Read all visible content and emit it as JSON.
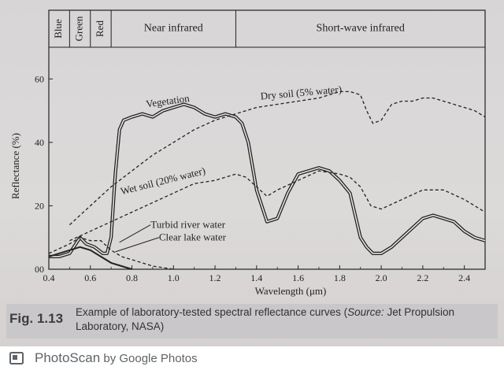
{
  "chart_data": {
    "type": "line",
    "xlabel": "Wavelength (μm)",
    "ylabel": "Reflectance (%)",
    "xlim": [
      0.4,
      2.5
    ],
    "ylim": [
      0,
      70
    ],
    "x_ticks": [
      "0.4",
      "0.6",
      "0.8",
      "1.0",
      "1.2",
      "1.4",
      "1.6",
      "1.8",
      "2.0",
      "2.2",
      "2.4"
    ],
    "y_ticks": [
      "00",
      "20",
      "40",
      "60"
    ],
    "bands": [
      {
        "label": "Blue",
        "from": 0.4,
        "to": 0.5
      },
      {
        "label": "Green",
        "from": 0.5,
        "to": 0.6
      },
      {
        "label": "Red",
        "from": 0.6,
        "to": 0.7
      },
      {
        "label": "Near infrared",
        "from": 0.7,
        "to": 1.3
      },
      {
        "label": "Short-wave infrared",
        "from": 1.3,
        "to": 2.5
      }
    ],
    "series": [
      {
        "name": "Vegetation",
        "style": "double",
        "x": [
          0.4,
          0.45,
          0.5,
          0.53,
          0.55,
          0.58,
          0.62,
          0.66,
          0.68,
          0.7,
          0.72,
          0.74,
          0.76,
          0.8,
          0.85,
          0.9,
          0.95,
          1.0,
          1.05,
          1.1,
          1.15,
          1.2,
          1.25,
          1.3,
          1.33,
          1.36,
          1.4,
          1.45,
          1.5,
          1.55,
          1.6,
          1.65,
          1.7,
          1.75,
          1.8,
          1.85,
          1.9,
          1.93,
          1.96,
          2.0,
          2.05,
          2.1,
          2.15,
          2.2,
          2.25,
          2.3,
          2.35,
          2.4,
          2.45,
          2.5
        ],
        "y": [
          4,
          4,
          5,
          8,
          10,
          8,
          7,
          5,
          5,
          10,
          30,
          44,
          47,
          48,
          49,
          48,
          50,
          51,
          52,
          51,
          49,
          48,
          49,
          48,
          46,
          40,
          25,
          15,
          16,
          24,
          30,
          31,
          32,
          31,
          28,
          24,
          10,
          7,
          5,
          5,
          7,
          10,
          13,
          16,
          17,
          16,
          15,
          12,
          10,
          9
        ]
      },
      {
        "name": "Dry soil (5% water)",
        "style": "dashed",
        "x": [
          0.5,
          0.6,
          0.7,
          0.8,
          0.9,
          1.0,
          1.1,
          1.2,
          1.3,
          1.4,
          1.5,
          1.6,
          1.7,
          1.8,
          1.85,
          1.9,
          1.93,
          1.96,
          2.0,
          2.05,
          2.1,
          2.15,
          2.2,
          2.25,
          2.3,
          2.35,
          2.4,
          2.45,
          2.5
        ],
        "y": [
          14,
          20,
          26,
          31,
          36,
          40,
          44,
          47,
          49,
          51,
          52,
          53,
          54,
          56,
          56,
          55,
          50,
          46,
          47,
          52,
          53,
          53,
          54,
          54,
          53,
          52,
          51,
          50,
          48
        ]
      },
      {
        "name": "Wet soil (20% water)",
        "style": "dashed",
        "x": [
          0.5,
          0.6,
          0.7,
          0.8,
          0.9,
          1.0,
          1.1,
          1.2,
          1.3,
          1.35,
          1.4,
          1.45,
          1.5,
          1.6,
          1.7,
          1.8,
          1.85,
          1.9,
          1.95,
          2.0,
          2.1,
          2.2,
          2.3,
          2.4,
          2.5
        ],
        "y": [
          9,
          12,
          15,
          18,
          21,
          24,
          27,
          28,
          30,
          29,
          26,
          23,
          25,
          28,
          31,
          30,
          29,
          26,
          20,
          19,
          22,
          25,
          25,
          22,
          18
        ]
      },
      {
        "name": "Turbid river water",
        "style": "dashed",
        "x": [
          0.4,
          0.5,
          0.55,
          0.6,
          0.65,
          0.7,
          0.75,
          0.8,
          0.9,
          1.0
        ],
        "y": [
          5,
          8,
          10,
          9,
          9,
          6,
          4,
          3,
          1,
          0
        ]
      },
      {
        "name": "Clear lake water",
        "style": "solid",
        "x": [
          0.4,
          0.45,
          0.5,
          0.55,
          0.6,
          0.65,
          0.7,
          0.75,
          0.8
        ],
        "y": [
          4,
          5,
          6,
          7,
          6,
          4,
          2,
          1,
          0
        ]
      }
    ]
  },
  "caption": {
    "figure_number": "Fig. 1.13",
    "text_main": "Example of laboratory-tested spectral reflectance curves (",
    "text_source_label": "Source:",
    "text_source": " Jet Propulsion Laboratory, NASA)"
  },
  "footer": {
    "app_name": "PhotoScan",
    "by_text": " by Google Photos",
    "icon": "photoscan-icon"
  },
  "colors": {
    "paper": "#d7d5d6",
    "ink": "#222222",
    "caption_bar": "#c9c7c9",
    "footer_text": "#5f6368"
  }
}
